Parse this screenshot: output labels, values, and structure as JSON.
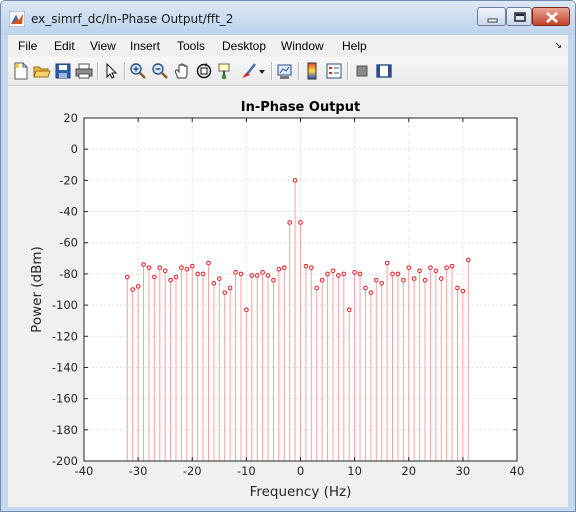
{
  "window": {
    "title": "ex_simrf_dc/In-Phase Output/fft_2"
  },
  "menu": {
    "items": [
      "File",
      "Edit",
      "View",
      "Insert",
      "Tools",
      "Desktop",
      "Window",
      "Help"
    ]
  },
  "toolbar": {
    "icons": [
      "new-figure-icon",
      "open-file-icon",
      "save-icon",
      "print-icon",
      "pointer-icon",
      "zoom-in-icon",
      "zoom-out-icon",
      "pan-icon",
      "rotate-3d-icon",
      "data-cursor-icon",
      "brush-icon",
      "brush-dropdown-icon",
      "link-plot-icon",
      "colorbar-icon",
      "legend-icon",
      "hide-plot-tools-icon",
      "show-plot-tools-icon"
    ]
  },
  "colors": {
    "stem": "#e8161c",
    "stem_line": "#f4a3a3",
    "grid": "#d9d9d9"
  },
  "chart_data": {
    "type": "stem",
    "title": "In-Phase Output",
    "xlabel": "Frequency (Hz)",
    "ylabel": "Power (dBm)",
    "xlim": [
      -40,
      40
    ],
    "ylim": [
      -200,
      20
    ],
    "xticks": [
      -40,
      -30,
      -20,
      -10,
      0,
      10,
      20,
      30,
      40
    ],
    "yticks": [
      20,
      0,
      -20,
      -40,
      -60,
      -80,
      -100,
      -120,
      -140,
      -160,
      -180,
      -200
    ],
    "grid": true,
    "x": [
      -32,
      -31,
      -30,
      -29,
      -28,
      -27,
      -26,
      -25,
      -24,
      -23,
      -22,
      -21,
      -20,
      -19,
      -18,
      -17,
      -16,
      -15,
      -14,
      -13,
      -12,
      -11,
      -10,
      -9,
      -8,
      -7,
      -6,
      -5,
      -4,
      -3,
      -2,
      -1,
      0,
      1,
      2,
      3,
      4,
      5,
      6,
      7,
      8,
      9,
      10,
      11,
      12,
      13,
      14,
      15,
      16,
      17,
      18,
      19,
      20,
      21,
      22,
      23,
      24,
      25,
      26,
      27,
      28,
      29,
      30,
      31
    ],
    "y": [
      -82,
      -90,
      -88,
      -74,
      -76,
      -82,
      -76,
      -78,
      -84,
      -82,
      -76,
      -77,
      -75,
      -80,
      -80,
      -73,
      -86,
      -83,
      -92,
      -89,
      -79,
      -80,
      -103,
      -81,
      -81,
      -79,
      -81,
      -84,
      -77,
      -76,
      -47,
      -20,
      -47,
      -75,
      -76,
      -89,
      -84,
      -80,
      -78,
      -81,
      -80,
      -103,
      -79,
      -80,
      -89,
      -92,
      -84,
      -86,
      -73,
      -80,
      -80,
      -84,
      -76,
      -83,
      -78,
      -84,
      -76,
      -78,
      -83,
      -76,
      -75,
      -89,
      -91,
      -71
    ]
  }
}
